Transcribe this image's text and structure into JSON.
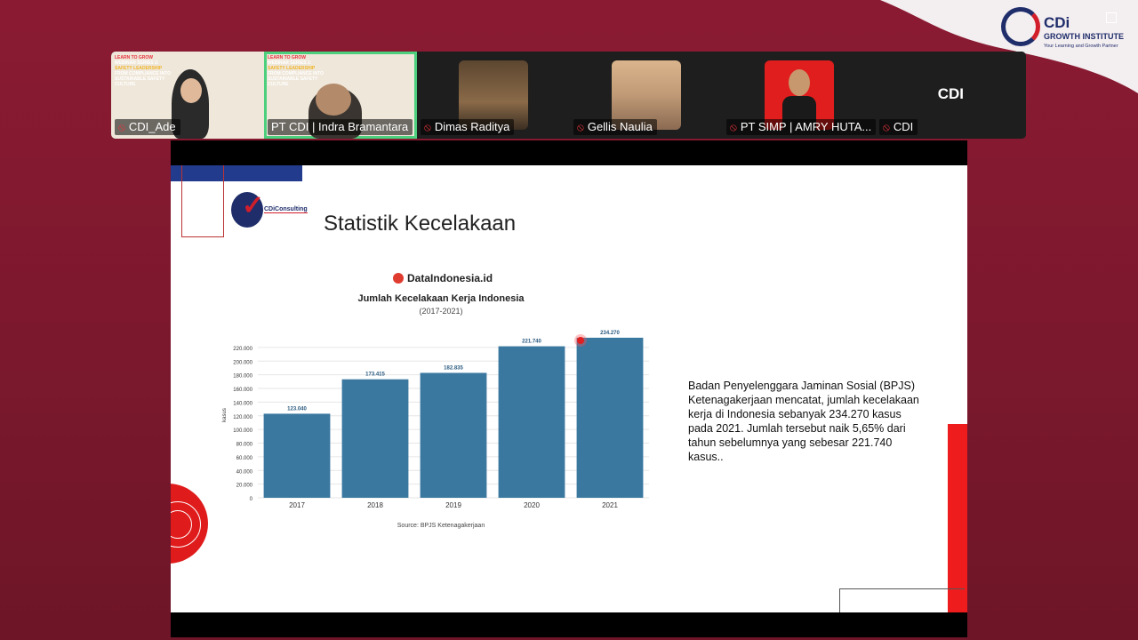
{
  "brand": {
    "name": "CDi",
    "line1": "GROWTH INSTITUTE",
    "tagline": "Your Learning and Growth Partner"
  },
  "participants": [
    {
      "name": "CDI_Ade",
      "muted": true,
      "active": false
    },
    {
      "name": "PT CDI | Indra Bramantara",
      "muted": false,
      "active": true
    },
    {
      "name": "Dimas Raditya",
      "muted": true,
      "active": false
    },
    {
      "name": "Gellis Naulia",
      "muted": true,
      "active": false
    },
    {
      "name": "PT SIMP | AMRY HUTA...",
      "muted": true,
      "active": false
    },
    {
      "name": "CDI",
      "muted": true,
      "active": false
    }
  ],
  "webinar_thumb": {
    "l1": "LEARN TO GROW",
    "l2": "WEBINAR SERIES 2:",
    "l3": "SAFETY LEADERSHIP",
    "l4": "FROM COMPLIANCE INTO",
    "l5": "SUSTAINABLE SAFETY CULTURE"
  },
  "cdi_tile_label": "CDI",
  "slide": {
    "logo_text": "CDiConsulting",
    "title": "Statistik Kecelakaan",
    "description": "Badan Penyelenggara Jaminan Sosial (BPJS) Ketenagakerjaan mencatat, jumlah kecelakaan kerja di Indonesia sebanyak 234.270 kasus pada 2021. Jumlah tersebut naik 5,65% dari tahun sebelumnya yang sebesar 221.740 kasus.."
  },
  "chart_brand": "DataIndonesia.id",
  "chart_data": {
    "type": "bar",
    "title": "Jumlah Kecelakaan Kerja Indonesia",
    "subtitle": "(2017-2021)",
    "ylabel": "kasus",
    "categories": [
      "2017",
      "2018",
      "2019",
      "2020",
      "2021"
    ],
    "values": [
      123040,
      173415,
      182835,
      221740,
      234270
    ],
    "data_labels": [
      "123.040",
      "173.415",
      "182.835",
      "221.740",
      "234.270"
    ],
    "yticks": [
      "0",
      "20.000",
      "40.000",
      "60.000",
      "80.000",
      "100.000",
      "120.000",
      "140.000",
      "160.000",
      "180.000",
      "200.000",
      "220.000"
    ],
    "ylim": [
      0,
      220000
    ],
    "source": "Source: BPJS Ketenagakerjaan",
    "bar_color": "#3a78a0"
  }
}
